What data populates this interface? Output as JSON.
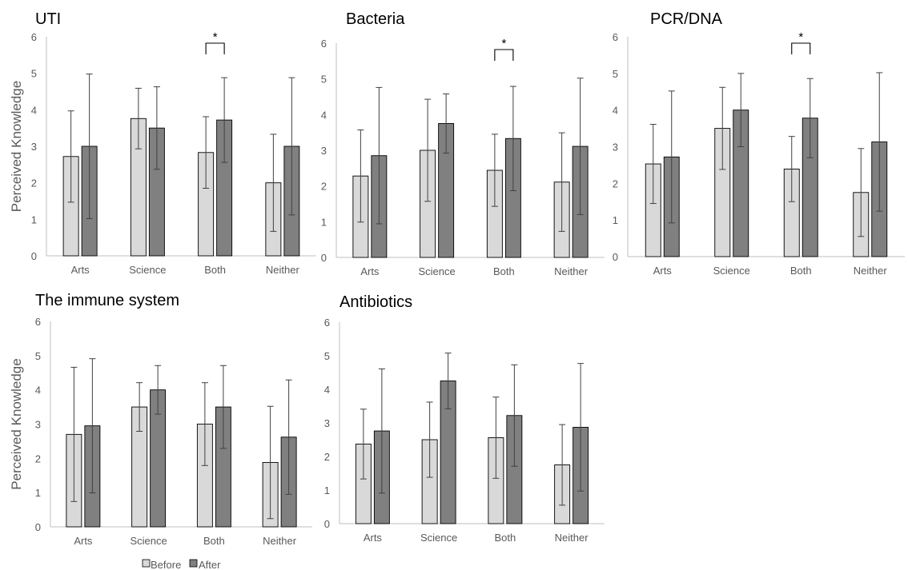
{
  "legend": {
    "before_label": "Before",
    "after_label": "After"
  },
  "colors": {
    "before": "#d9d9d9",
    "after": "#808080",
    "edge": "#000000",
    "axis": "#bfbfbf",
    "error": "#404040"
  },
  "chart_data": [
    {
      "type": "bar",
      "title": "UTI",
      "ylabel": "Perceived Knowledge",
      "ylim": [
        0,
        6
      ],
      "yticks": [
        "0",
        "1",
        "2",
        "3",
        "4",
        "5",
        "6"
      ],
      "categories": [
        "Arts",
        "Science",
        "Both",
        "Neither"
      ],
      "series": [
        {
          "name": "Before",
          "values": [
            2.72,
            3.76,
            2.83,
            2.0
          ],
          "error": [
            1.25,
            0.83,
            0.98,
            1.33
          ]
        },
        {
          "name": "After",
          "values": [
            3.0,
            3.5,
            3.72,
            3.0
          ],
          "error": [
            1.98,
            1.13,
            1.16,
            1.88
          ]
        }
      ],
      "significance": [
        {
          "category": "Both",
          "label": "*"
        }
      ]
    },
    {
      "type": "bar",
      "title": "Bacteria",
      "ylabel": "",
      "ylim": [
        0,
        6
      ],
      "yticks": [
        "0",
        "1",
        "2",
        "3",
        "4",
        "5",
        "6"
      ],
      "categories": [
        "Arts",
        "Science",
        "Both",
        "Neither"
      ],
      "series": [
        {
          "name": "Before",
          "values": [
            2.28,
            3.0,
            2.44,
            2.11
          ],
          "error": [
            1.29,
            1.43,
            1.01,
            1.38
          ]
        },
        {
          "name": "After",
          "values": [
            2.85,
            3.75,
            3.33,
            3.11
          ],
          "error": [
            1.91,
            0.83,
            1.46,
            1.91
          ]
        }
      ],
      "significance": [
        {
          "category": "Both",
          "label": "*"
        }
      ]
    },
    {
      "type": "bar",
      "title": "PCR/DNA",
      "ylabel": "",
      "ylim": [
        0,
        6
      ],
      "yticks": [
        "0",
        "1",
        "2",
        "3",
        "4",
        "5",
        "6"
      ],
      "categories": [
        "Arts",
        "Science",
        "Both",
        "Neither"
      ],
      "series": [
        {
          "name": "Before",
          "values": [
            2.53,
            3.5,
            2.39,
            1.75
          ],
          "error": [
            1.08,
            1.12,
            0.89,
            1.2
          ]
        },
        {
          "name": "After",
          "values": [
            2.72,
            4.0,
            3.78,
            3.13
          ],
          "error": [
            1.8,
            1.0,
            1.08,
            1.89
          ]
        }
      ],
      "significance": [
        {
          "category": "Both",
          "label": "*"
        }
      ]
    },
    {
      "type": "bar",
      "title": "The immune system",
      "ylabel": "Perceived Knowledge",
      "ylim": [
        0,
        6
      ],
      "yticks": [
        "0",
        "1",
        "2",
        "3",
        "4",
        "5",
        "6"
      ],
      "categories": [
        "Arts",
        "Science",
        "Both",
        "Neither"
      ],
      "series": [
        {
          "name": "Before",
          "values": [
            2.7,
            3.5,
            3.0,
            1.88
          ],
          "error": [
            1.96,
            0.71,
            1.21,
            1.64
          ]
        },
        {
          "name": "After",
          "values": [
            2.95,
            4.0,
            3.5,
            2.62
          ],
          "error": [
            1.96,
            0.71,
            1.21,
            1.67
          ]
        }
      ],
      "significance": []
    },
    {
      "type": "bar",
      "title": "Antibiotics",
      "ylabel": "",
      "ylim": [
        0,
        6
      ],
      "yticks": [
        "0",
        "1",
        "2",
        "3",
        "4",
        "5",
        "6"
      ],
      "categories": [
        "Arts",
        "Science",
        "Both",
        "Neither"
      ],
      "series": [
        {
          "name": "Before",
          "values": [
            2.37,
            2.5,
            2.56,
            1.75
          ],
          "error": [
            1.04,
            1.12,
            1.21,
            1.2
          ]
        },
        {
          "name": "After",
          "values": [
            2.76,
            4.25,
            3.22,
            2.87
          ],
          "error": [
            1.85,
            0.83,
            1.51,
            1.9
          ]
        }
      ],
      "significance": []
    }
  ]
}
